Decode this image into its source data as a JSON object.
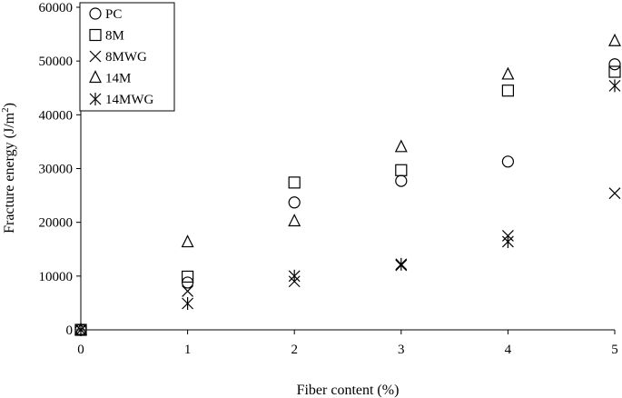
{
  "chart_data": {
    "type": "scatter",
    "title": "",
    "xlabel": "Fiber content (%)",
    "ylabel_main": "Fracture energy (J/m",
    "ylabel_sup": "2",
    "ylabel_tail": ")",
    "xlim": [
      0,
      5
    ],
    "ylim": [
      0,
      60000
    ],
    "xticks": [
      0,
      1,
      2,
      3,
      4,
      5
    ],
    "yticks": [
      0,
      10000,
      20000,
      30000,
      40000,
      50000,
      60000
    ],
    "grid": false,
    "legend_position": "top-left",
    "series": [
      {
        "name": "PC",
        "marker": "circle",
        "x": [
          0,
          1,
          2,
          3,
          4,
          5
        ],
        "y": [
          0,
          8800,
          23700,
          27700,
          31300,
          49400
        ]
      },
      {
        "name": "8M",
        "marker": "square",
        "x": [
          0,
          1,
          2,
          3,
          4,
          5
        ],
        "y": [
          0,
          9900,
          27400,
          29700,
          44500,
          48000
        ]
      },
      {
        "name": "8MWG",
        "marker": "x",
        "x": [
          0,
          1,
          2,
          3,
          4,
          5
        ],
        "y": [
          0,
          7200,
          9000,
          12000,
          17500,
          25400
        ]
      },
      {
        "name": "14M",
        "marker": "triangle",
        "x": [
          0,
          1,
          2,
          3,
          4,
          5
        ],
        "y": [
          0,
          16300,
          20200,
          34000,
          47500,
          53700
        ]
      },
      {
        "name": "14MWG",
        "marker": "asterisk",
        "x": [
          0,
          1,
          2,
          3,
          4,
          5
        ],
        "y": [
          0,
          4900,
          10000,
          12200,
          16400,
          45400
        ]
      }
    ]
  }
}
